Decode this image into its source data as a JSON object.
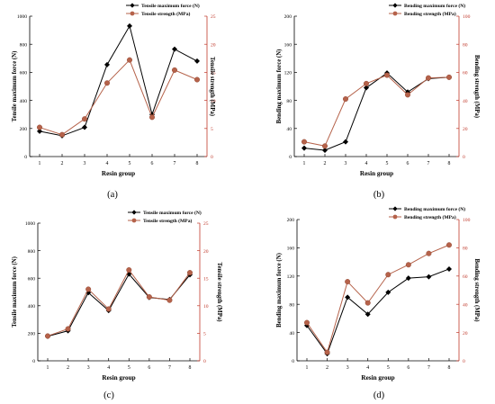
{
  "colors": {
    "left_series": "#000000",
    "right_series": "#b5624a",
    "right_axis": "#c0392b",
    "axis": "#000000"
  },
  "chart_data": [
    {
      "type": "line",
      "panel_label": "(a)",
      "x": [
        1,
        2,
        3,
        4,
        5,
        6,
        7,
        8
      ],
      "xlabel": "Resin group",
      "ylabel_left": "Tensile maximum force  (N)",
      "ylabel_right": "Tensile strength  (MPa)",
      "ylim_left": [
        0,
        1000
      ],
      "yticks_left": [
        0,
        200,
        400,
        600,
        800,
        1000
      ],
      "ylim_right": [
        0,
        25
      ],
      "yticks_right": [
        0,
        5,
        10,
        15,
        20,
        25
      ],
      "grid": false,
      "legend_position": "top-center",
      "series": [
        {
          "name": "Tensile maximum force  (N)",
          "axis": "left",
          "marker": "diamond",
          "values": [
            180,
            148,
            208,
            655,
            930,
            300,
            765,
            680
          ]
        },
        {
          "name": "Tensile strength  (MPa)",
          "axis": "right",
          "marker": "circle",
          "values": [
            5.2,
            3.9,
            6.7,
            13.1,
            17.2,
            7.0,
            15.4,
            13.7
          ]
        }
      ]
    },
    {
      "type": "line",
      "panel_label": "(b)",
      "x": [
        1,
        2,
        3,
        4,
        5,
        6,
        7,
        8
      ],
      "xlabel": "Resin group",
      "ylabel_left": "Bending maximum force  (N)",
      "ylabel_right": "Bending strength  (MPa)",
      "ylim_left": [
        0,
        200
      ],
      "yticks_left": [
        0,
        40,
        80,
        120,
        160,
        200
      ],
      "ylim_right": [
        0,
        100
      ],
      "yticks_right": [
        0,
        20,
        40,
        60,
        80,
        100
      ],
      "grid": false,
      "legend_position": "top-center",
      "series": [
        {
          "name": "Bending maximum force  (N)",
          "axis": "left",
          "marker": "diamond",
          "values": [
            12,
            9,
            21,
            98,
            119,
            92,
            111,
            113
          ]
        },
        {
          "name": "Bending strength  (MPa)",
          "axis": "right",
          "marker": "circle",
          "values": [
            10.5,
            7.5,
            41,
            52,
            58,
            44,
            56,
            56.5
          ]
        }
      ]
    },
    {
      "type": "line",
      "panel_label": "(c)",
      "x": [
        1,
        2,
        3,
        4,
        5,
        6,
        7,
        8
      ],
      "xlabel": "Resin group",
      "ylabel_left": "Tensile maximum force  (N)",
      "ylabel_right": "Tensile strength  (MPa)",
      "ylim_left": [
        0,
        1000
      ],
      "yticks_left": [
        0,
        200,
        400,
        600,
        800,
        1000
      ],
      "ylim_right": [
        0,
        25
      ],
      "yticks_right": [
        0,
        5,
        10,
        15,
        20,
        25
      ],
      "grid": false,
      "legend_position": "top-center",
      "series": [
        {
          "name": "Tensile maximum force  (N)",
          "axis": "left",
          "marker": "diamond",
          "values": [
            178,
            218,
            495,
            365,
            630,
            460,
            445,
            625
          ]
        },
        {
          "name": "Tensile strength  (MPa)",
          "axis": "right",
          "marker": "circle",
          "values": [
            4.5,
            5.8,
            13.0,
            9.4,
            16.5,
            11.6,
            11.0,
            16.0
          ]
        }
      ]
    },
    {
      "type": "line",
      "panel_label": "(d)",
      "x": [
        1,
        2,
        3,
        4,
        5,
        6,
        7,
        8
      ],
      "xlabel": "Resin group",
      "ylabel_left": "Bending maximum force  (N)",
      "ylabel_right": "Bending strength  (MPa)",
      "ylim_left": [
        0,
        200
      ],
      "yticks_left": [
        0,
        40,
        80,
        120,
        160,
        200
      ],
      "ylim_right": [
        0,
        100
      ],
      "yticks_right": [
        0,
        20,
        40,
        60,
        80,
        100
      ],
      "grid": false,
      "legend_position": "top-center",
      "series": [
        {
          "name": "Bending maximum force  (N)",
          "axis": "left",
          "marker": "diamond",
          "values": [
            50,
            10,
            90,
            66,
            97,
            117,
            119,
            130
          ]
        },
        {
          "name": "Bending strength  (MPa)",
          "axis": "right",
          "marker": "circle",
          "values": [
            27,
            6,
            56,
            41,
            61,
            68,
            76,
            82
          ]
        }
      ]
    }
  ]
}
